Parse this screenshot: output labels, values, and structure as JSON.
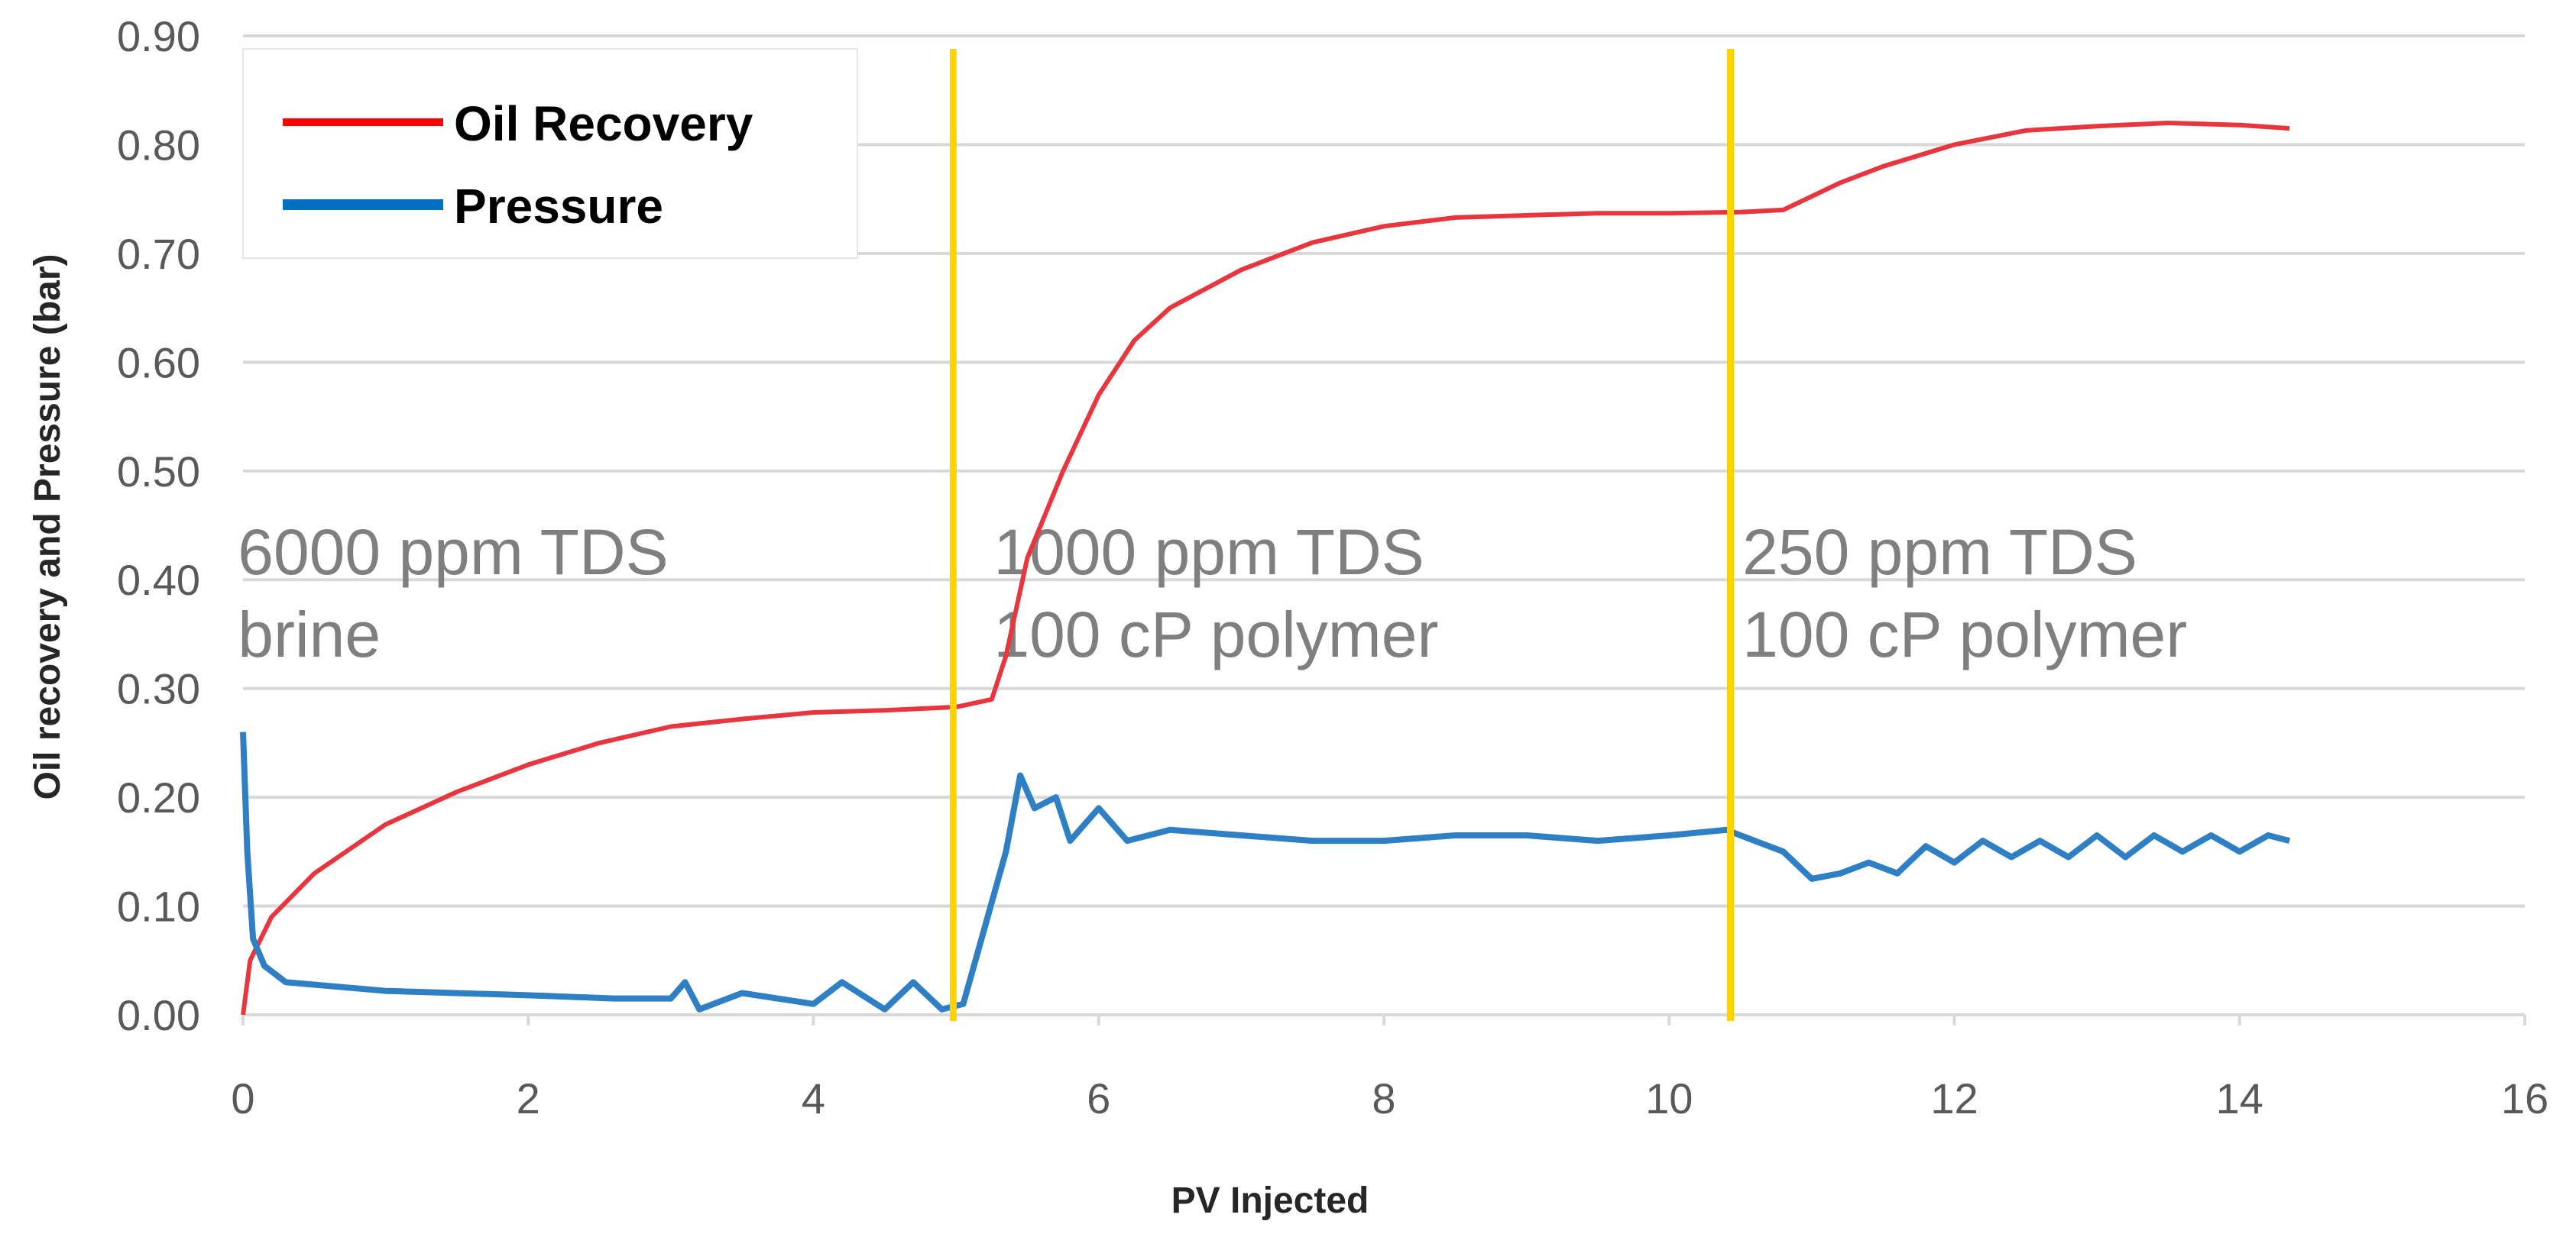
{
  "chart_data": {
    "type": "line",
    "title": "",
    "xlabel": "PV Injected",
    "ylabel": "Oil recovery and Pressure (bar)",
    "xlim": [
      0,
      16
    ],
    "ylim": [
      0,
      0.9
    ],
    "xticks": [
      "0",
      "2",
      "4",
      "6",
      "8",
      "10",
      "12",
      "14",
      "16"
    ],
    "yticks": [
      "0.00",
      "0.10",
      "0.20",
      "0.30",
      "0.40",
      "0.50",
      "0.60",
      "0.70",
      "0.80",
      "0.90"
    ],
    "grid": "horizontal",
    "legend_position": "top-left",
    "legend": [
      "Oil Recovery",
      "Pressure"
    ],
    "colors": {
      "oil": "#e8363f",
      "pressure": "#2e7fc4",
      "legend_oil": "#ff0000",
      "legend_pressure": "#0070c0",
      "marker": "#ffd200",
      "grid": "#d9d9d9"
    },
    "vertical_markers": [
      4.98,
      10.43
    ],
    "annotations": [
      {
        "lines": [
          "6000 ppm TDS",
          "brine"
        ],
        "x": 2.0
      },
      {
        "lines": [
          "1000 ppm TDS",
          "100 cP polymer"
        ],
        "x": 7.3
      },
      {
        "lines": [
          "250 ppm TDS",
          "100 cP polymer"
        ],
        "x": 12.55
      }
    ],
    "series": [
      {
        "name": "Oil Recovery",
        "x": [
          0,
          0.05,
          0.2,
          0.5,
          1,
          1.5,
          2,
          2.5,
          3,
          3.5,
          4,
          4.5,
          5,
          5.25,
          5.35,
          5.5,
          5.75,
          6,
          6.25,
          6.5,
          7,
          7.5,
          8,
          8.5,
          9,
          9.5,
          10,
          10.5,
          10.8,
          11.2,
          11.5,
          12,
          12.5,
          13,
          13.5,
          14,
          14.35
        ],
        "y": [
          0,
          0.05,
          0.09,
          0.13,
          0.175,
          0.205,
          0.23,
          0.25,
          0.265,
          0.272,
          0.278,
          0.28,
          0.283,
          0.29,
          0.33,
          0.42,
          0.5,
          0.57,
          0.62,
          0.65,
          0.685,
          0.71,
          0.725,
          0.733,
          0.735,
          0.737,
          0.737,
          0.738,
          0.74,
          0.765,
          0.78,
          0.8,
          0.813,
          0.817,
          0.82,
          0.818,
          0.815
        ]
      },
      {
        "name": "Pressure",
        "x": [
          0,
          0.03,
          0.07,
          0.15,
          0.3,
          1,
          2,
          2.6,
          3,
          3.1,
          3.2,
          3.5,
          4,
          4.2,
          4.5,
          4.7,
          4.9,
          5.05,
          5.2,
          5.35,
          5.45,
          5.55,
          5.7,
          5.8,
          6,
          6.2,
          6.5,
          7,
          7.5,
          8,
          8.5,
          9,
          9.5,
          10,
          10.4,
          10.6,
          10.8,
          11,
          11.2,
          11.4,
          11.6,
          11.8,
          12,
          12.2,
          12.4,
          12.6,
          12.8,
          13,
          13.2,
          13.4,
          13.6,
          13.8,
          14,
          14.2,
          14.35
        ],
        "y": [
          0.26,
          0.15,
          0.07,
          0.045,
          0.03,
          0.022,
          0.018,
          0.015,
          0.015,
          0.03,
          0.005,
          0.02,
          0.01,
          0.03,
          0.005,
          0.03,
          0.005,
          0.01,
          0.08,
          0.15,
          0.22,
          0.19,
          0.2,
          0.16,
          0.19,
          0.16,
          0.17,
          0.165,
          0.16,
          0.16,
          0.165,
          0.165,
          0.16,
          0.165,
          0.17,
          0.16,
          0.15,
          0.125,
          0.13,
          0.14,
          0.13,
          0.155,
          0.14,
          0.16,
          0.145,
          0.16,
          0.145,
          0.165,
          0.145,
          0.165,
          0.15,
          0.165,
          0.15,
          0.165,
          0.16
        ]
      }
    ]
  }
}
